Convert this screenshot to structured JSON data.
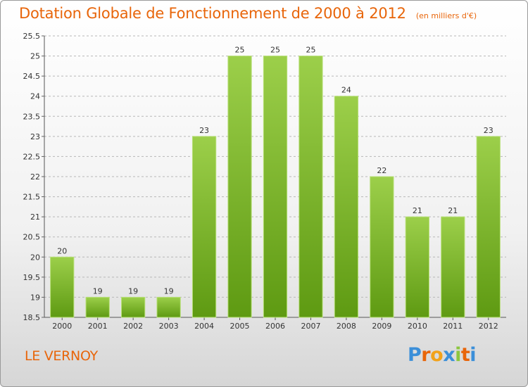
{
  "header": {
    "title": "Dotation Globale de Fonctionnement de 2000 à 2012",
    "subtitle": "(en milliers d'€)"
  },
  "commune": "LE VERNOY",
  "logo": {
    "text": "Proxiti",
    "letters": [
      {
        "ch": "P",
        "color": "#3b8fd9"
      },
      {
        "ch": "r",
        "color": "#e8650a"
      },
      {
        "ch": "o",
        "color": "#f2a21a"
      },
      {
        "ch": "x",
        "color": "#3b8fd9"
      },
      {
        "ch": "i",
        "color": "#8cc63f"
      },
      {
        "ch": "t",
        "color": "#e8650a"
      },
      {
        "ch": "i",
        "color": "#3b8fd9"
      }
    ]
  },
  "colors": {
    "accent": "#e8650a",
    "bar_top": "#9ccf4a",
    "bar_bottom": "#5e9a12",
    "grid": "#b8b8b8"
  },
  "chart_data": {
    "type": "bar",
    "title": "Dotation Globale de Fonctionnement de 2000 à 2012",
    "subtitle": "(en milliers d'€)",
    "categories": [
      "2000",
      "2001",
      "2002",
      "2003",
      "2004",
      "2005",
      "2006",
      "2007",
      "2008",
      "2009",
      "2010",
      "2011",
      "2012"
    ],
    "values": [
      20,
      19,
      19,
      19,
      23,
      25,
      25,
      25,
      24,
      22,
      21,
      21,
      23
    ],
    "data_labels": [
      "20",
      "19",
      "19",
      "19",
      "23",
      "25",
      "25",
      "25",
      "24",
      "22",
      "21",
      "21",
      "23"
    ],
    "ylim": [
      18.5,
      25.5
    ],
    "yticks": [
      18.5,
      19,
      19.5,
      20,
      20.5,
      21,
      21.5,
      22,
      22.5,
      23,
      23.5,
      24,
      24.5,
      25,
      25.5
    ],
    "ytick_labels": [
      "18.5",
      "19",
      "19.5",
      "20",
      "20.5",
      "21",
      "21.5",
      "22",
      "22.5",
      "23",
      "23.5",
      "24",
      "24.5",
      "25",
      "25.5"
    ],
    "grid": true,
    "xlabel": "",
    "ylabel": ""
  }
}
